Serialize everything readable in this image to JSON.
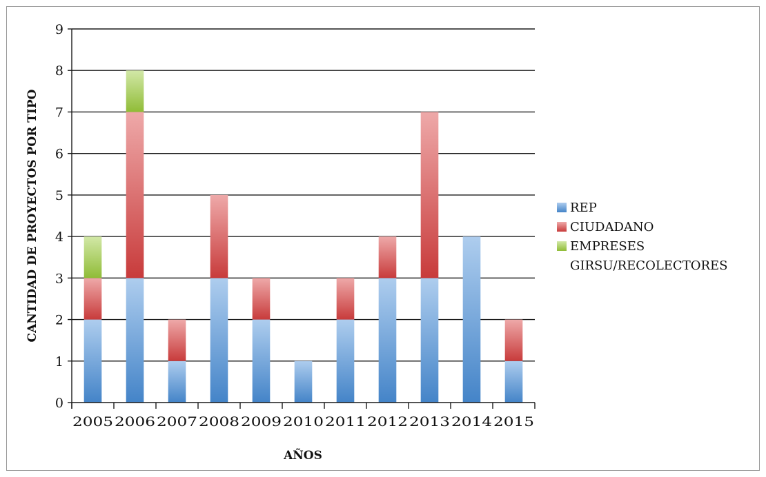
{
  "chart_data": {
    "type": "bar",
    "stacked": true,
    "categories": [
      "2005",
      "2006",
      "2007",
      "2008",
      "2009",
      "2010",
      "2011",
      "2012",
      "2013",
      "2014",
      "2015"
    ],
    "series": [
      {
        "name": "REP",
        "values": [
          2,
          3,
          1,
          3,
          2,
          1,
          2,
          3,
          3,
          4,
          1
        ],
        "color": "#4a8fd9"
      },
      {
        "name": "CIUDADANO",
        "values": [
          1,
          4,
          1,
          2,
          1,
          0,
          1,
          1,
          4,
          0,
          1
        ],
        "color": "#d94040"
      },
      {
        "name": "EMPRESES GIRSU/RECOLECTORES",
        "values": [
          1,
          1,
          0,
          0,
          0,
          0,
          0,
          0,
          0,
          0,
          0
        ],
        "color": "#9ccc3c"
      }
    ],
    "legend": {
      "position": "right",
      "lines": [
        [
          "REP"
        ],
        [
          "CIUDADANO"
        ],
        [
          "EMPRESES",
          "GIRSU/RECOLECTORES"
        ]
      ]
    },
    "xlabel": "AÑOS",
    "ylabel": "CANTIDAD DE PROYECTOS POR TIPO",
    "ylim": [
      0,
      9
    ],
    "yticks": [
      "0",
      "1",
      "2",
      "3",
      "4",
      "5",
      "6",
      "7",
      "8",
      "9"
    ],
    "grid": true
  }
}
